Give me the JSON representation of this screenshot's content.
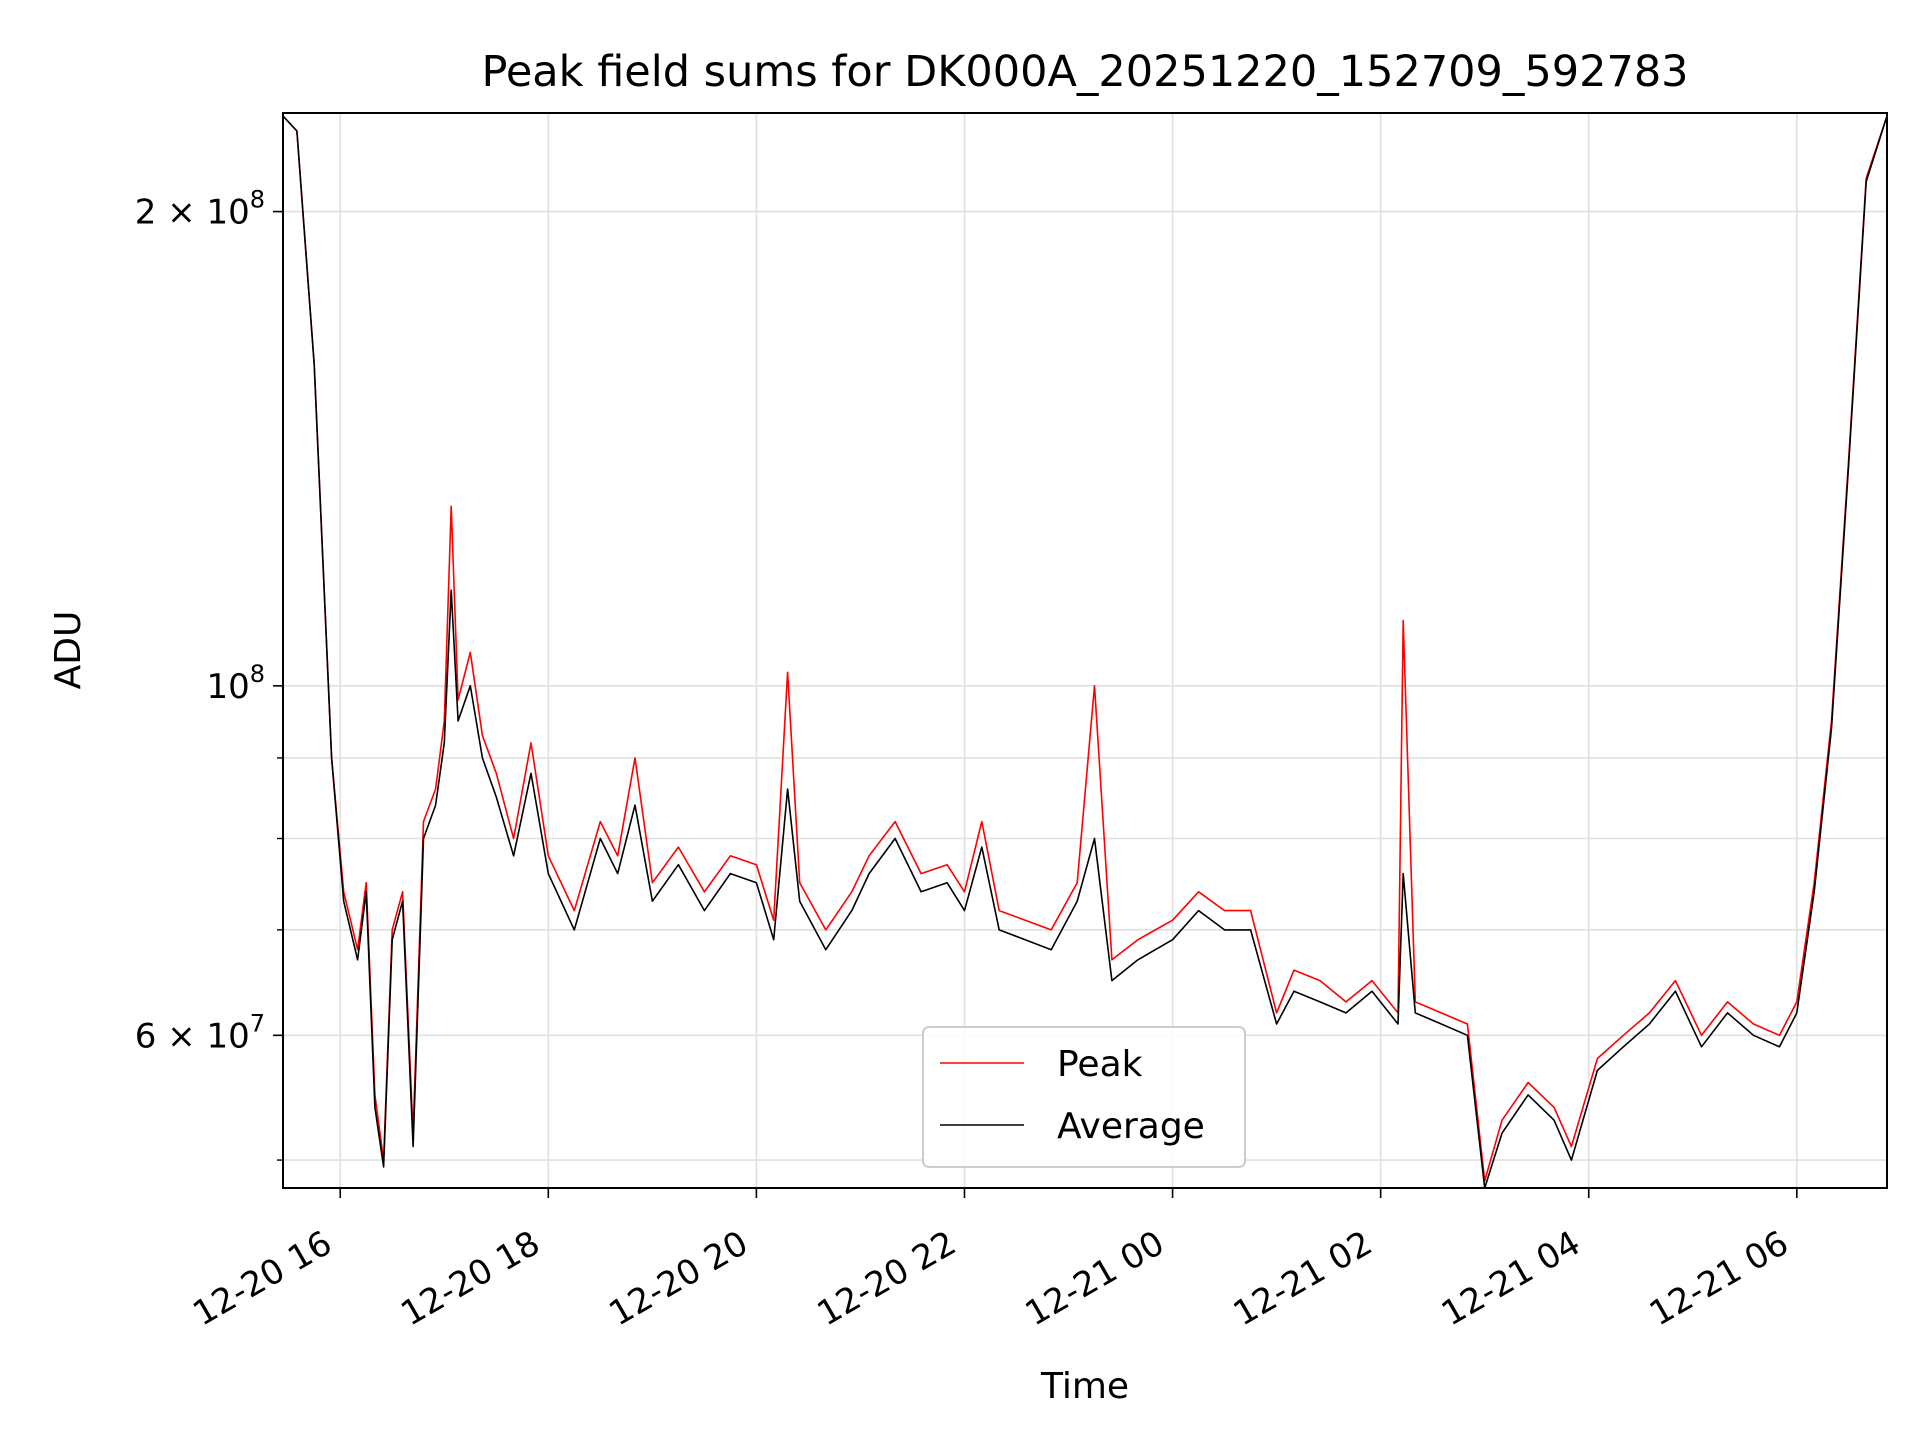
{
  "chart_data": {
    "type": "line",
    "title": "Peak field sums for DK000A_20251220_152709_592783",
    "xlabel": "Time",
    "ylabel": "ADU",
    "y_scale": "log",
    "x_range": [
      "2025-12-20 15:27",
      "2025-12-21 06:52"
    ],
    "ylim": [
      48000000,
      231000000
    ],
    "grid": true,
    "legend_position": "lower-center",
    "x_ticks": [
      "12-20 16",
      "12-20 18",
      "12-20 20",
      "12-20 22",
      "12-21 00",
      "12-21 02",
      "12-21 04",
      "12-21 06"
    ],
    "y_ticks": [
      {
        "label_mantissa": "2",
        "label_exp": "8",
        "value": 200000000,
        "form": "mant"
      },
      {
        "label_mantissa": "",
        "label_exp": "8",
        "value": 100000000,
        "form": "pow"
      },
      {
        "label_mantissa": "6",
        "label_exp": "7",
        "value": 60000000,
        "form": "mant"
      }
    ],
    "y_minor_ticks": [
      50000000,
      70000000,
      80000000,
      90000000
    ],
    "series": [
      {
        "name": "Peak",
        "color": "#ff0000",
        "points": [
          [
            "2025-12-20 15:27",
            230000000
          ],
          [
            "2025-12-20 15:35",
            225000000
          ],
          [
            "2025-12-20 15:45",
            160000000
          ],
          [
            "2025-12-20 15:55",
            90000000
          ],
          [
            "2025-12-20 16:02",
            74000000
          ],
          [
            "2025-12-20 16:10",
            68000000
          ],
          [
            "2025-12-20 16:15",
            75000000
          ],
          [
            "2025-12-20 16:20",
            55000000
          ],
          [
            "2025-12-20 16:25",
            50000000
          ],
          [
            "2025-12-20 16:30",
            70000000
          ],
          [
            "2025-12-20 16:36",
            74000000
          ],
          [
            "2025-12-20 16:42",
            52000000
          ],
          [
            "2025-12-20 16:48",
            82000000
          ],
          [
            "2025-12-20 16:55",
            86000000
          ],
          [
            "2025-12-20 17:00",
            95000000
          ],
          [
            "2025-12-20 17:04",
            130000000
          ],
          [
            "2025-12-20 17:08",
            98000000
          ],
          [
            "2025-12-20 17:15",
            105000000
          ],
          [
            "2025-12-20 17:22",
            93000000
          ],
          [
            "2025-12-20 17:30",
            88000000
          ],
          [
            "2025-12-20 17:40",
            80000000
          ],
          [
            "2025-12-20 17:50",
            92000000
          ],
          [
            "2025-12-20 18:00",
            78000000
          ],
          [
            "2025-12-20 18:15",
            72000000
          ],
          [
            "2025-12-20 18:30",
            82000000
          ],
          [
            "2025-12-20 18:40",
            78000000
          ],
          [
            "2025-12-20 18:50",
            90000000
          ],
          [
            "2025-12-20 19:00",
            75000000
          ],
          [
            "2025-12-20 19:15",
            79000000
          ],
          [
            "2025-12-20 19:30",
            74000000
          ],
          [
            "2025-12-20 19:45",
            78000000
          ],
          [
            "2025-12-20 20:00",
            77000000
          ],
          [
            "2025-12-20 20:10",
            71000000
          ],
          [
            "2025-12-20 20:18",
            102000000
          ],
          [
            "2025-12-20 20:25",
            75000000
          ],
          [
            "2025-12-20 20:40",
            70000000
          ],
          [
            "2025-12-20 20:55",
            74000000
          ],
          [
            "2025-12-20 21:05",
            78000000
          ],
          [
            "2025-12-20 21:20",
            82000000
          ],
          [
            "2025-12-20 21:35",
            76000000
          ],
          [
            "2025-12-20 21:50",
            77000000
          ],
          [
            "2025-12-20 22:00",
            74000000
          ],
          [
            "2025-12-20 22:10",
            82000000
          ],
          [
            "2025-12-20 22:20",
            72000000
          ],
          [
            "2025-12-20 22:35",
            71000000
          ],
          [
            "2025-12-20 22:50",
            70000000
          ],
          [
            "2025-12-20 23:05",
            75000000
          ],
          [
            "2025-12-20 23:15",
            100000000
          ],
          [
            "2025-12-20 23:25",
            67000000
          ],
          [
            "2025-12-20 23:40",
            69000000
          ],
          [
            "2025-12-21 00:00",
            71000000
          ],
          [
            "2025-12-21 00:15",
            74000000
          ],
          [
            "2025-12-21 00:30",
            72000000
          ],
          [
            "2025-12-21 00:45",
            72000000
          ],
          [
            "2025-12-21 01:00",
            62000000
          ],
          [
            "2025-12-21 01:10",
            66000000
          ],
          [
            "2025-12-21 01:25",
            65000000
          ],
          [
            "2025-12-21 01:40",
            63000000
          ],
          [
            "2025-12-21 01:55",
            65000000
          ],
          [
            "2025-12-21 02:10",
            62000000
          ],
          [
            "2025-12-21 02:13",
            110000000
          ],
          [
            "2025-12-21 02:20",
            63000000
          ],
          [
            "2025-12-21 02:35",
            62000000
          ],
          [
            "2025-12-21 02:50",
            61000000
          ],
          [
            "2025-12-21 03:00",
            48500000
          ],
          [
            "2025-12-21 03:10",
            53000000
          ],
          [
            "2025-12-21 03:25",
            56000000
          ],
          [
            "2025-12-21 03:40",
            54000000
          ],
          [
            "2025-12-21 03:50",
            51000000
          ],
          [
            "2025-12-21 04:05",
            58000000
          ],
          [
            "2025-12-21 04:20",
            60000000
          ],
          [
            "2025-12-21 04:35",
            62000000
          ],
          [
            "2025-12-21 04:50",
            65000000
          ],
          [
            "2025-12-21 05:05",
            60000000
          ],
          [
            "2025-12-21 05:20",
            63000000
          ],
          [
            "2025-12-21 05:35",
            61000000
          ],
          [
            "2025-12-21 05:50",
            60000000
          ],
          [
            "2025-12-21 06:00",
            63000000
          ],
          [
            "2025-12-21 06:10",
            75000000
          ],
          [
            "2025-12-21 06:20",
            95000000
          ],
          [
            "2025-12-21 06:30",
            140000000
          ],
          [
            "2025-12-21 06:40",
            210000000
          ],
          [
            "2025-12-21 06:52",
            230000000
          ]
        ]
      },
      {
        "name": "Average",
        "color": "#000000",
        "points": [
          [
            "2025-12-20 15:27",
            230000000
          ],
          [
            "2025-12-20 15:35",
            225000000
          ],
          [
            "2025-12-20 15:45",
            160000000
          ],
          [
            "2025-12-20 15:55",
            90000000
          ],
          [
            "2025-12-20 16:02",
            73000000
          ],
          [
            "2025-12-20 16:10",
            67000000
          ],
          [
            "2025-12-20 16:15",
            74000000
          ],
          [
            "2025-12-20 16:20",
            54000000
          ],
          [
            "2025-12-20 16:25",
            49500000
          ],
          [
            "2025-12-20 16:30",
            69000000
          ],
          [
            "2025-12-20 16:36",
            73000000
          ],
          [
            "2025-12-20 16:42",
            51000000
          ],
          [
            "2025-12-20 16:48",
            80000000
          ],
          [
            "2025-12-20 16:55",
            84000000
          ],
          [
            "2025-12-20 17:00",
            92000000
          ],
          [
            "2025-12-20 17:04",
            115000000
          ],
          [
            "2025-12-20 17:08",
            95000000
          ],
          [
            "2025-12-20 17:15",
            100000000
          ],
          [
            "2025-12-20 17:22",
            90000000
          ],
          [
            "2025-12-20 17:30",
            85000000
          ],
          [
            "2025-12-20 17:40",
            78000000
          ],
          [
            "2025-12-20 17:50",
            88000000
          ],
          [
            "2025-12-20 18:00",
            76000000
          ],
          [
            "2025-12-20 18:15",
            70000000
          ],
          [
            "2025-12-20 18:30",
            80000000
          ],
          [
            "2025-12-20 18:40",
            76000000
          ],
          [
            "2025-12-20 18:50",
            84000000
          ],
          [
            "2025-12-20 19:00",
            73000000
          ],
          [
            "2025-12-20 19:15",
            77000000
          ],
          [
            "2025-12-20 19:30",
            72000000
          ],
          [
            "2025-12-20 19:45",
            76000000
          ],
          [
            "2025-12-20 20:00",
            75000000
          ],
          [
            "2025-12-20 20:10",
            69000000
          ],
          [
            "2025-12-20 20:18",
            86000000
          ],
          [
            "2025-12-20 20:25",
            73000000
          ],
          [
            "2025-12-20 20:40",
            68000000
          ],
          [
            "2025-12-20 20:55",
            72000000
          ],
          [
            "2025-12-20 21:05",
            76000000
          ],
          [
            "2025-12-20 21:20",
            80000000
          ],
          [
            "2025-12-20 21:35",
            74000000
          ],
          [
            "2025-12-20 21:50",
            75000000
          ],
          [
            "2025-12-20 22:00",
            72000000
          ],
          [
            "2025-12-20 22:10",
            79000000
          ],
          [
            "2025-12-20 22:20",
            70000000
          ],
          [
            "2025-12-20 22:35",
            69000000
          ],
          [
            "2025-12-20 22:50",
            68000000
          ],
          [
            "2025-12-20 23:05",
            73000000
          ],
          [
            "2025-12-20 23:15",
            80000000
          ],
          [
            "2025-12-20 23:25",
            65000000
          ],
          [
            "2025-12-20 23:40",
            67000000
          ],
          [
            "2025-12-21 00:00",
            69000000
          ],
          [
            "2025-12-21 00:15",
            72000000
          ],
          [
            "2025-12-21 00:30",
            70000000
          ],
          [
            "2025-12-21 00:45",
            70000000
          ],
          [
            "2025-12-21 01:00",
            61000000
          ],
          [
            "2025-12-21 01:10",
            64000000
          ],
          [
            "2025-12-21 01:25",
            63000000
          ],
          [
            "2025-12-21 01:40",
            62000000
          ],
          [
            "2025-12-21 01:55",
            64000000
          ],
          [
            "2025-12-21 02:10",
            61000000
          ],
          [
            "2025-12-21 02:13",
            76000000
          ],
          [
            "2025-12-21 02:20",
            62000000
          ],
          [
            "2025-12-21 02:35",
            61000000
          ],
          [
            "2025-12-21 02:50",
            60000000
          ],
          [
            "2025-12-21 03:00",
            48000000
          ],
          [
            "2025-12-21 03:10",
            52000000
          ],
          [
            "2025-12-21 03:25",
            55000000
          ],
          [
            "2025-12-21 03:40",
            53000000
          ],
          [
            "2025-12-21 03:50",
            50000000
          ],
          [
            "2025-12-21 04:05",
            57000000
          ],
          [
            "2025-12-21 04:20",
            59000000
          ],
          [
            "2025-12-21 04:35",
            61000000
          ],
          [
            "2025-12-21 04:50",
            64000000
          ],
          [
            "2025-12-21 05:05",
            59000000
          ],
          [
            "2025-12-21 05:20",
            62000000
          ],
          [
            "2025-12-21 05:35",
            60000000
          ],
          [
            "2025-12-21 05:50",
            59000000
          ],
          [
            "2025-12-21 06:00",
            62000000
          ],
          [
            "2025-12-21 06:10",
            74000000
          ],
          [
            "2025-12-21 06:20",
            94000000
          ],
          [
            "2025-12-21 06:30",
            139000000
          ],
          [
            "2025-12-21 06:40",
            209000000
          ],
          [
            "2025-12-21 06:52",
            230000000
          ]
        ]
      }
    ],
    "legend": [
      {
        "label": "Peak",
        "color": "#ff0000"
      },
      {
        "label": "Average",
        "color": "#000000"
      }
    ]
  }
}
